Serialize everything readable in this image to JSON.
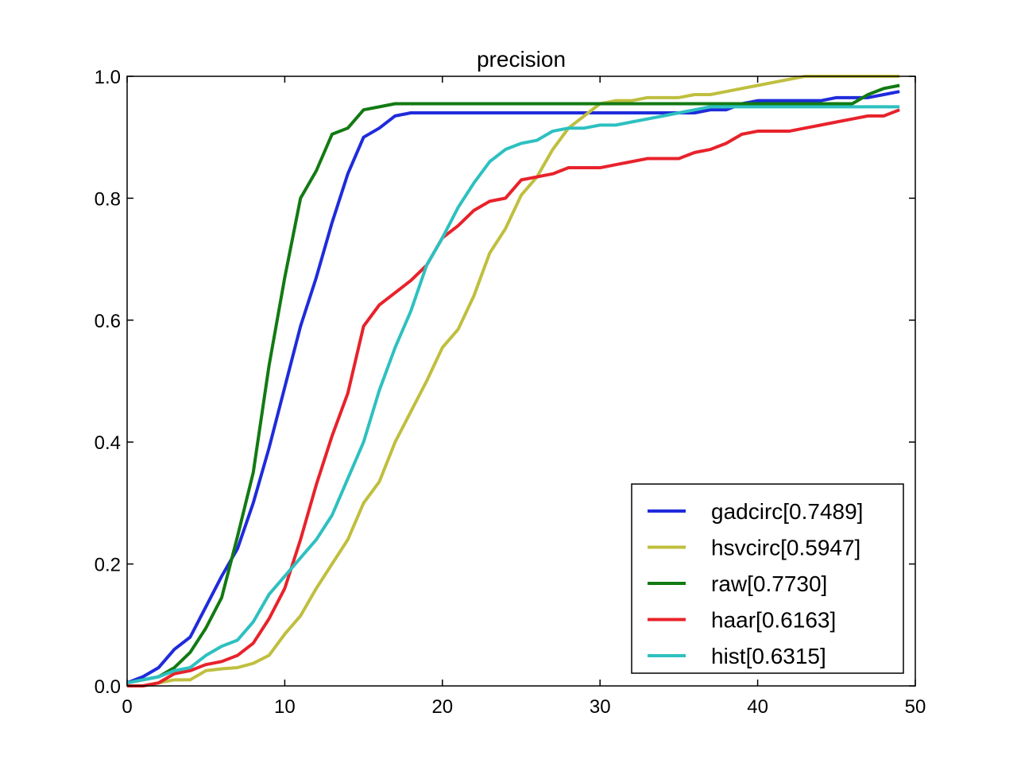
{
  "chart_data": {
    "type": "line",
    "title": "precision",
    "xlabel": "",
    "ylabel": "",
    "xlim": [
      0,
      50
    ],
    "ylim": [
      0,
      1.0
    ],
    "xticks": [
      "0",
      "10",
      "20",
      "30",
      "40",
      "50"
    ],
    "yticks": [
      "0.0",
      "0.2",
      "0.4",
      "0.6",
      "0.8",
      "1.0"
    ],
    "grid": false,
    "legend_position": "bottom-right",
    "x": [
      0,
      1,
      2,
      3,
      4,
      5,
      6,
      7,
      8,
      9,
      10,
      11,
      12,
      13,
      14,
      15,
      16,
      17,
      18,
      19,
      20,
      21,
      22,
      23,
      24,
      25,
      26,
      27,
      28,
      29,
      30,
      31,
      32,
      33,
      34,
      35,
      36,
      37,
      38,
      39,
      40,
      41,
      42,
      43,
      44,
      45,
      46,
      47,
      48,
      49
    ],
    "series": [
      {
        "name": "gadcirc[0.7489]",
        "color": "#1f2bdb",
        "values": [
          0.005,
          0.015,
          0.03,
          0.06,
          0.08,
          0.13,
          0.18,
          0.225,
          0.3,
          0.39,
          0.49,
          0.59,
          0.67,
          0.76,
          0.84,
          0.9,
          0.915,
          0.935,
          0.94,
          0.94,
          0.94,
          0.94,
          0.94,
          0.94,
          0.94,
          0.94,
          0.94,
          0.94,
          0.94,
          0.94,
          0.94,
          0.94,
          0.94,
          0.94,
          0.94,
          0.94,
          0.94,
          0.945,
          0.945,
          0.955,
          0.96,
          0.96,
          0.96,
          0.96,
          0.96,
          0.965,
          0.965,
          0.965,
          0.97,
          0.975
        ]
      },
      {
        "name": "hsvcirc[0.5947]",
        "color": "#bfbf3f",
        "values": [
          0.0,
          0.0,
          0.005,
          0.01,
          0.01,
          0.025,
          0.028,
          0.03,
          0.037,
          0.05,
          0.085,
          0.115,
          0.16,
          0.2,
          0.24,
          0.3,
          0.335,
          0.4,
          0.45,
          0.5,
          0.555,
          0.585,
          0.64,
          0.71,
          0.75,
          0.805,
          0.835,
          0.88,
          0.915,
          0.935,
          0.955,
          0.96,
          0.96,
          0.965,
          0.965,
          0.965,
          0.97,
          0.97,
          0.975,
          0.98,
          0.985,
          0.99,
          0.995,
          1.0,
          1.0,
          1.0,
          1.0,
          1.0,
          1.0,
          1.0
        ]
      },
      {
        "name": "raw[0.7730]",
        "color": "#127a12",
        "values": [
          0.005,
          0.01,
          0.015,
          0.03,
          0.055,
          0.095,
          0.145,
          0.245,
          0.35,
          0.525,
          0.67,
          0.8,
          0.845,
          0.905,
          0.915,
          0.945,
          0.95,
          0.955,
          0.955,
          0.955,
          0.955,
          0.955,
          0.955,
          0.955,
          0.955,
          0.955,
          0.955,
          0.955,
          0.955,
          0.955,
          0.955,
          0.955,
          0.955,
          0.955,
          0.955,
          0.955,
          0.955,
          0.955,
          0.955,
          0.955,
          0.955,
          0.955,
          0.955,
          0.955,
          0.955,
          0.955,
          0.955,
          0.97,
          0.98,
          0.985
        ]
      },
      {
        "name": "haar[0.6163]",
        "color": "#e8222b",
        "values": [
          0.0,
          0.0,
          0.005,
          0.02,
          0.025,
          0.035,
          0.04,
          0.05,
          0.07,
          0.11,
          0.16,
          0.24,
          0.33,
          0.41,
          0.48,
          0.59,
          0.625,
          0.645,
          0.665,
          0.69,
          0.735,
          0.755,
          0.78,
          0.795,
          0.8,
          0.83,
          0.835,
          0.84,
          0.85,
          0.85,
          0.85,
          0.855,
          0.86,
          0.865,
          0.865,
          0.865,
          0.875,
          0.88,
          0.89,
          0.905,
          0.91,
          0.91,
          0.91,
          0.915,
          0.92,
          0.925,
          0.93,
          0.935,
          0.935,
          0.945
        ]
      },
      {
        "name": "hist[0.6315]",
        "color": "#2ec0c0",
        "values": [
          0.005,
          0.01,
          0.015,
          0.025,
          0.03,
          0.05,
          0.065,
          0.075,
          0.105,
          0.15,
          0.18,
          0.21,
          0.24,
          0.28,
          0.34,
          0.4,
          0.485,
          0.555,
          0.615,
          0.69,
          0.735,
          0.785,
          0.825,
          0.86,
          0.88,
          0.89,
          0.895,
          0.91,
          0.915,
          0.915,
          0.92,
          0.92,
          0.925,
          0.93,
          0.935,
          0.94,
          0.945,
          0.95,
          0.95,
          0.95,
          0.95,
          0.95,
          0.95,
          0.95,
          0.95,
          0.95,
          0.95,
          0.95,
          0.95,
          0.95
        ]
      }
    ]
  }
}
